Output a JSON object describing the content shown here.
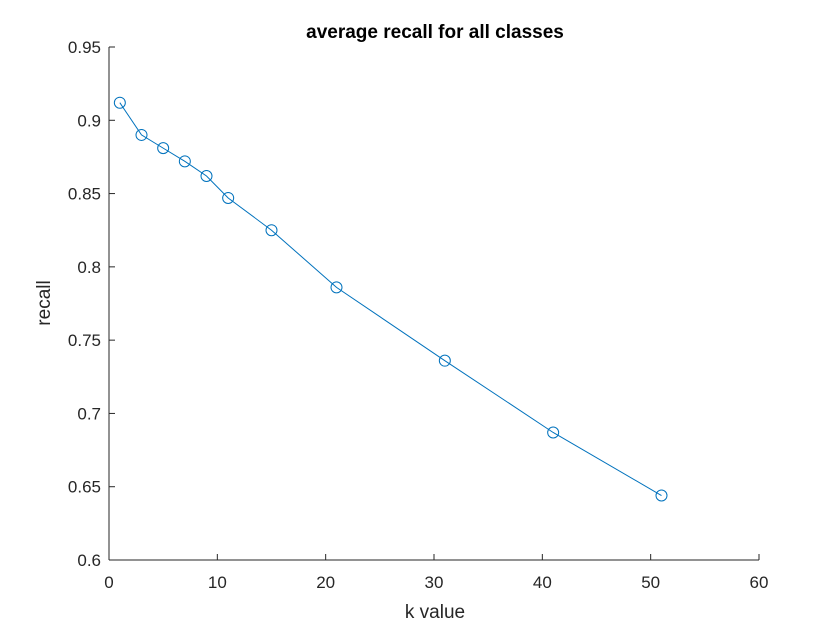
{
  "chart_data": {
    "type": "line",
    "title": "average recall for all classes",
    "xlabel": "k value",
    "ylabel": "recall",
    "xlim": [
      0,
      60
    ],
    "ylim": [
      0.6,
      0.95
    ],
    "xticks": [
      "0",
      "10",
      "20",
      "30",
      "40",
      "50",
      "60"
    ],
    "yticks": [
      "0.6",
      "0.65",
      "0.7",
      "0.75",
      "0.8",
      "0.85",
      "0.9",
      "0.95"
    ],
    "grid": false,
    "legend": "none",
    "marker": "circle",
    "color": "#0072BD",
    "series": [
      {
        "x": [
          1,
          3,
          5,
          7,
          9,
          11,
          15,
          21,
          31,
          41,
          51
        ],
        "y": [
          0.912,
          0.89,
          0.881,
          0.872,
          0.862,
          0.847,
          0.825,
          0.786,
          0.736,
          0.687,
          0.644
        ]
      }
    ]
  }
}
